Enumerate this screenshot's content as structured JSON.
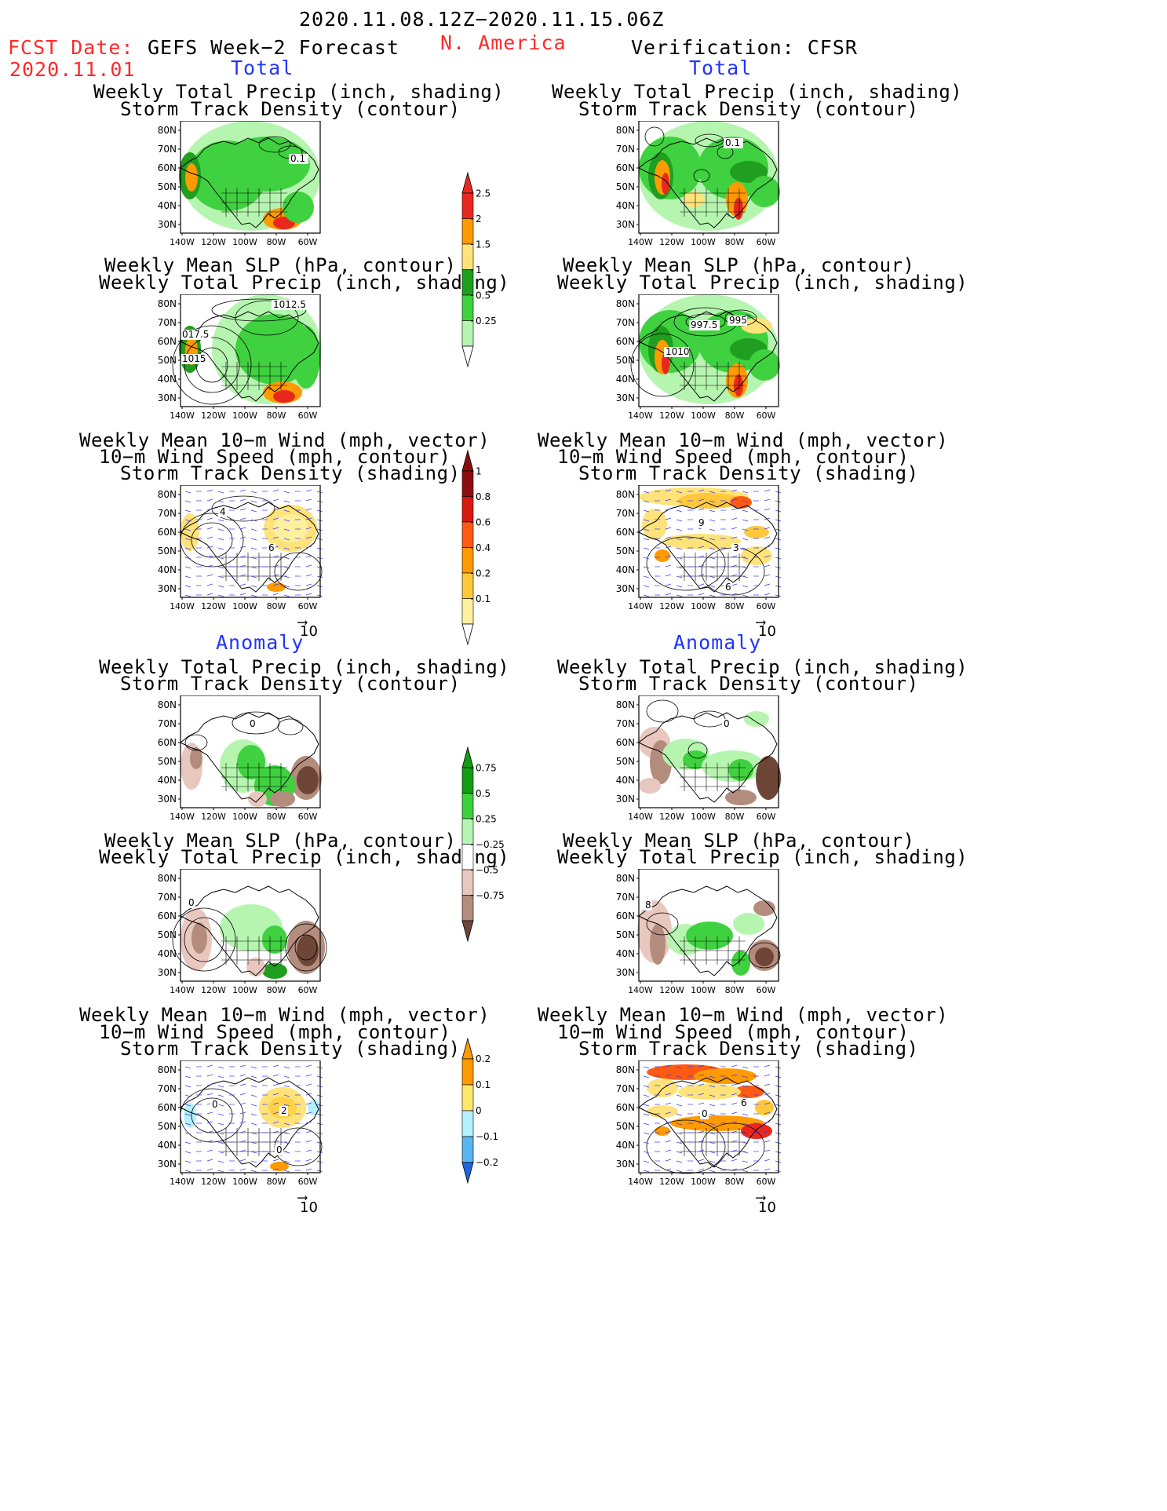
{
  "header": {
    "date_range": "2020.11.08.12Z−2020.11.15.06Z",
    "fcst_label": "FCST Date:",
    "fcst_date": "2020.11.01",
    "left_heading": "GEFS Week−2 Forecast",
    "region": "N. America",
    "right_heading": "Verification: CFSR"
  },
  "sections": {
    "total": "Total",
    "anomaly": "Anomaly"
  },
  "titles": {
    "precip_track": [
      "Weekly Total Precip (inch, shading)",
      "Storm Track Density (contour)"
    ],
    "slp_precip": [
      "Weekly Mean SLP (hPa, contour)",
      "Weekly Total Precip (inch, shading)"
    ],
    "wind_track": [
      "Weekly Mean 10−m Wind (mph, vector)",
      "10−m Wind Speed (mph, contour)",
      "Storm Track Density (shading)"
    ]
  },
  "axes": {
    "lat_labels": [
      "80N",
      "70N",
      "60N",
      "50N",
      "40N",
      "30N"
    ],
    "lon_labels": [
      "140W",
      "120W",
      "100W",
      "80W",
      "60W"
    ],
    "vector_ref": "10"
  },
  "contour_labels": {
    "fcst_track_total": "0.1",
    "cfsr_track_total": "0.1",
    "fcst_slp_total": [
      "1012.5",
      "017.5",
      "1015"
    ],
    "cfsr_slp_total": [
      "997.5",
      "995",
      "1010"
    ],
    "fcst_wind_total": [
      "4",
      "6"
    ],
    "cfsr_wind_total": [
      "9",
      "3",
      "6"
    ],
    "fcst_track_anom": "0",
    "cfsr_track_anom": "0",
    "fcst_slp_anom": "0",
    "cfsr_slp_anom": "8",
    "fcst_wind_anom": [
      "0",
      "2",
      "0"
    ],
    "cfsr_wind_anom": [
      "6",
      "0"
    ]
  },
  "colorbars": {
    "precip_total": {
      "labels": [
        "2.5",
        "2",
        "1.5",
        "1",
        "0.5",
        "0.25"
      ],
      "colors": [
        "#e8281e",
        "#ff9a00",
        "#ffe37a",
        "#1f9e1f",
        "#3fd13f",
        "#b6f5b0"
      ]
    },
    "track_total": {
      "labels": [
        "1",
        "0.8",
        "0.6",
        "0.4",
        "0.2",
        "0.1"
      ],
      "colors": [
        "#8b0f0f",
        "#d7190f",
        "#ff5a14",
        "#ff9a00",
        "#ffc83c",
        "#fff0a0"
      ]
    },
    "precip_anom": {
      "labels": [
        "0.75",
        "0.5",
        "0.25",
        "−0.25",
        "−0.5",
        "−0.75"
      ],
      "colors": [
        "#149b14",
        "#3cd13c",
        "#b4f5b4",
        "#e8c8be",
        "#b48c7d",
        "#6e4637"
      ]
    },
    "track_anom": {
      "labels": [
        "0.2",
        "0.1",
        "0",
        "−0.1",
        "−0.2"
      ],
      "colors": [
        "#f23c14",
        "#ff9a00",
        "#ffe66e",
        "#b4f0ff",
        "#5ab4f0",
        "#1e64dc"
      ]
    }
  }
}
